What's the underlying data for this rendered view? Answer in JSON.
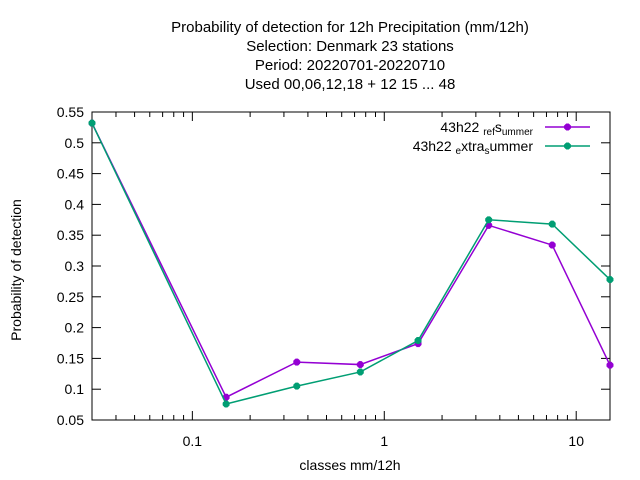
{
  "chart_data": {
    "type": "line",
    "title_lines": [
      "Probability of detection  for 12h Precipitation (mm/12h)",
      "Selection: Denmark     23 stations",
      "Period: 20220701-20220710",
      "Used  00,06,12,18  + 12 15 ... 48"
    ],
    "xlabel": "classes mm/12h",
    "ylabel": "Probability of detection",
    "x_scale": "log",
    "xlim": [
      0.03,
      15
    ],
    "ylim": [
      0.05,
      0.55
    ],
    "x_ticks": [
      {
        "value": 0.1,
        "label": "0.1"
      },
      {
        "value": 1,
        "label": "1"
      },
      {
        "value": 10,
        "label": "10"
      }
    ],
    "y_ticks": [
      {
        "value": 0.05,
        "label": "0.05"
      },
      {
        "value": 0.1,
        "label": "0.1"
      },
      {
        "value": 0.15,
        "label": "0.15"
      },
      {
        "value": 0.2,
        "label": "0.2"
      },
      {
        "value": 0.25,
        "label": "0.25"
      },
      {
        "value": 0.3,
        "label": "0.3"
      },
      {
        "value": 0.35,
        "label": "0.35"
      },
      {
        "value": 0.4,
        "label": "0.4"
      },
      {
        "value": 0.45,
        "label": "0.45"
      },
      {
        "value": 0.5,
        "label": "0.5"
      },
      {
        "value": 0.55,
        "label": "0.55"
      }
    ],
    "grid": false,
    "legend_position": "top-right",
    "series": [
      {
        "name_parts": [
          "43h22",
          "ref",
          "s",
          "ummer"
        ],
        "color": "#9400d3",
        "x": [
          0.03,
          0.15,
          0.35,
          0.75,
          1.5,
          3.5,
          7.5,
          15
        ],
        "y": [
          0.532,
          0.087,
          0.144,
          0.14,
          0.174,
          0.366,
          0.334,
          0.139
        ]
      },
      {
        "name_parts": [
          "43h22",
          "e",
          "xtra",
          "s",
          "ummer"
        ],
        "color": "#009e73",
        "x": [
          0.03,
          0.15,
          0.35,
          0.75,
          1.5,
          3.5,
          7.5,
          15
        ],
        "y": [
          0.532,
          0.076,
          0.105,
          0.128,
          0.179,
          0.375,
          0.368,
          0.278
        ]
      }
    ]
  }
}
